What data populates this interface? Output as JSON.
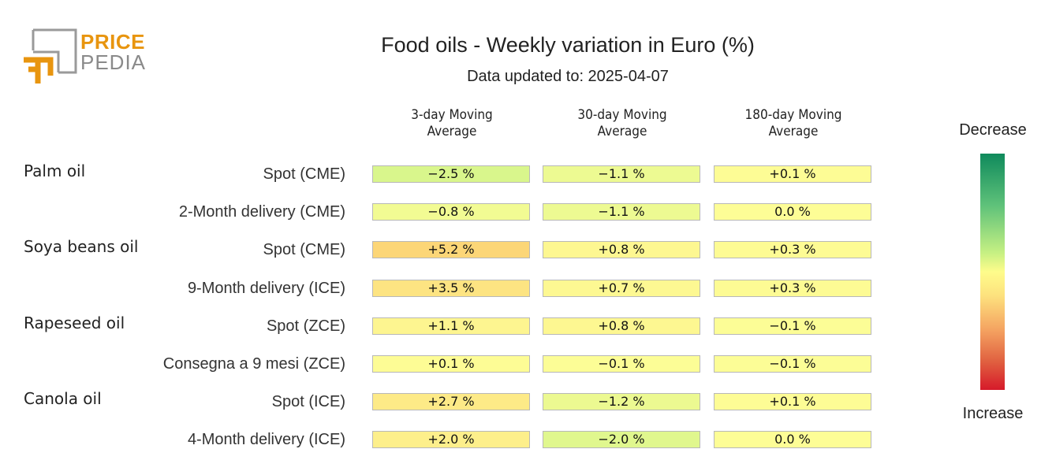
{
  "logo": {
    "word1": "PRICE",
    "word2": "PEDIA"
  },
  "title": "Food oils - Weekly variation in Euro (%)",
  "subtitle": "Data updated to: 2025-04-07",
  "chart_data": {
    "type": "heatmap",
    "title": "Food oils - Weekly variation in Euro (%)",
    "columns": [
      "3-day Moving Average",
      "30-day Moving Average",
      "180-day Moving Average"
    ],
    "groups": [
      {
        "name": "Palm oil",
        "rows": [
          {
            "label": "Spot (CME)",
            "values": [
              -2.5,
              -1.1,
              0.1
            ],
            "text": [
              "−2.5 %",
              "−1.1 %",
              "+0.1 %"
            ]
          },
          {
            "label": "2-Month delivery (CME)",
            "values": [
              -0.8,
              -1.1,
              0.0
            ],
            "text": [
              "−0.8 %",
              "−1.1 %",
              "0.0 %"
            ]
          }
        ]
      },
      {
        "name": "Soya beans oil",
        "rows": [
          {
            "label": "Spot (CME)",
            "values": [
              5.2,
              0.8,
              0.3
            ],
            "text": [
              "+5.2 %",
              "+0.8 %",
              "+0.3 %"
            ]
          },
          {
            "label": "9-Month delivery (ICE)",
            "values": [
              3.5,
              0.7,
              0.3
            ],
            "text": [
              "+3.5 %",
              "+0.7 %",
              "+0.3 %"
            ]
          }
        ]
      },
      {
        "name": "Rapeseed oil",
        "rows": [
          {
            "label": "Spot (ZCE)",
            "values": [
              1.1,
              0.8,
              -0.1
            ],
            "text": [
              "+1.1 %",
              "+0.8 %",
              "−0.1 %"
            ]
          },
          {
            "label": "Consegna a 9 mesi (ZCE)",
            "values": [
              0.1,
              -0.1,
              -0.1
            ],
            "text": [
              "+0.1 %",
              "−0.1 %",
              "−0.1 %"
            ]
          }
        ]
      },
      {
        "name": "Canola oil",
        "rows": [
          {
            "label": "Spot (ICE)",
            "values": [
              2.7,
              -1.2,
              0.1
            ],
            "text": [
              "+2.7 %",
              "−1.2 %",
              "+0.1 %"
            ]
          },
          {
            "label": "4-Month delivery (ICE)",
            "values": [
              2.0,
              -2.0,
              0.0
            ],
            "text": [
              "+2.0 %",
              "−2.0 %",
              "0.0 %"
            ]
          }
        ]
      }
    ],
    "colorscale": {
      "top_label": "Decrease",
      "bottom_label": "Increase"
    }
  }
}
